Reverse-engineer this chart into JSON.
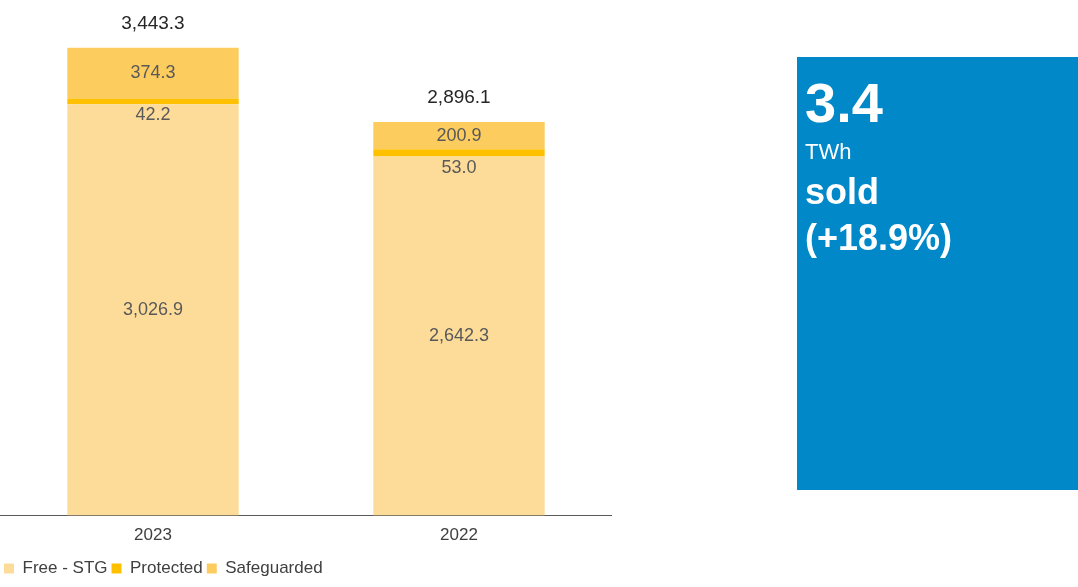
{
  "chart_data": [
    {
      "type": "bar",
      "stacked": true,
      "categories": [
        "2023",
        "2022"
      ],
      "series": [
        {
          "name": "Free - STG",
          "color": "#fddc9a",
          "values": [
            3026.9,
            2642.3
          ],
          "value_labels": [
            "3,026.9",
            "2,642.3"
          ]
        },
        {
          "name": "Protected",
          "color": "#ffc000",
          "values": [
            42.2,
            53.0
          ],
          "value_labels": [
            "42.2",
            "53.0"
          ]
        },
        {
          "name": "Safeguarded",
          "color": "#fdcc5f",
          "values": [
            374.3,
            200.9
          ]
        }
      ],
      "totals": [
        "3,443.3",
        "2,896.1"
      ],
      "data_labels": true,
      "legend": "bottom",
      "grid": false
    },
    {
      "type": "other",
      "color": "#0088c9",
      "title": "3.4",
      "annotations": [
        "TWh",
        "sold",
        "(+18.9%)"
      ]
    }
  ]
}
